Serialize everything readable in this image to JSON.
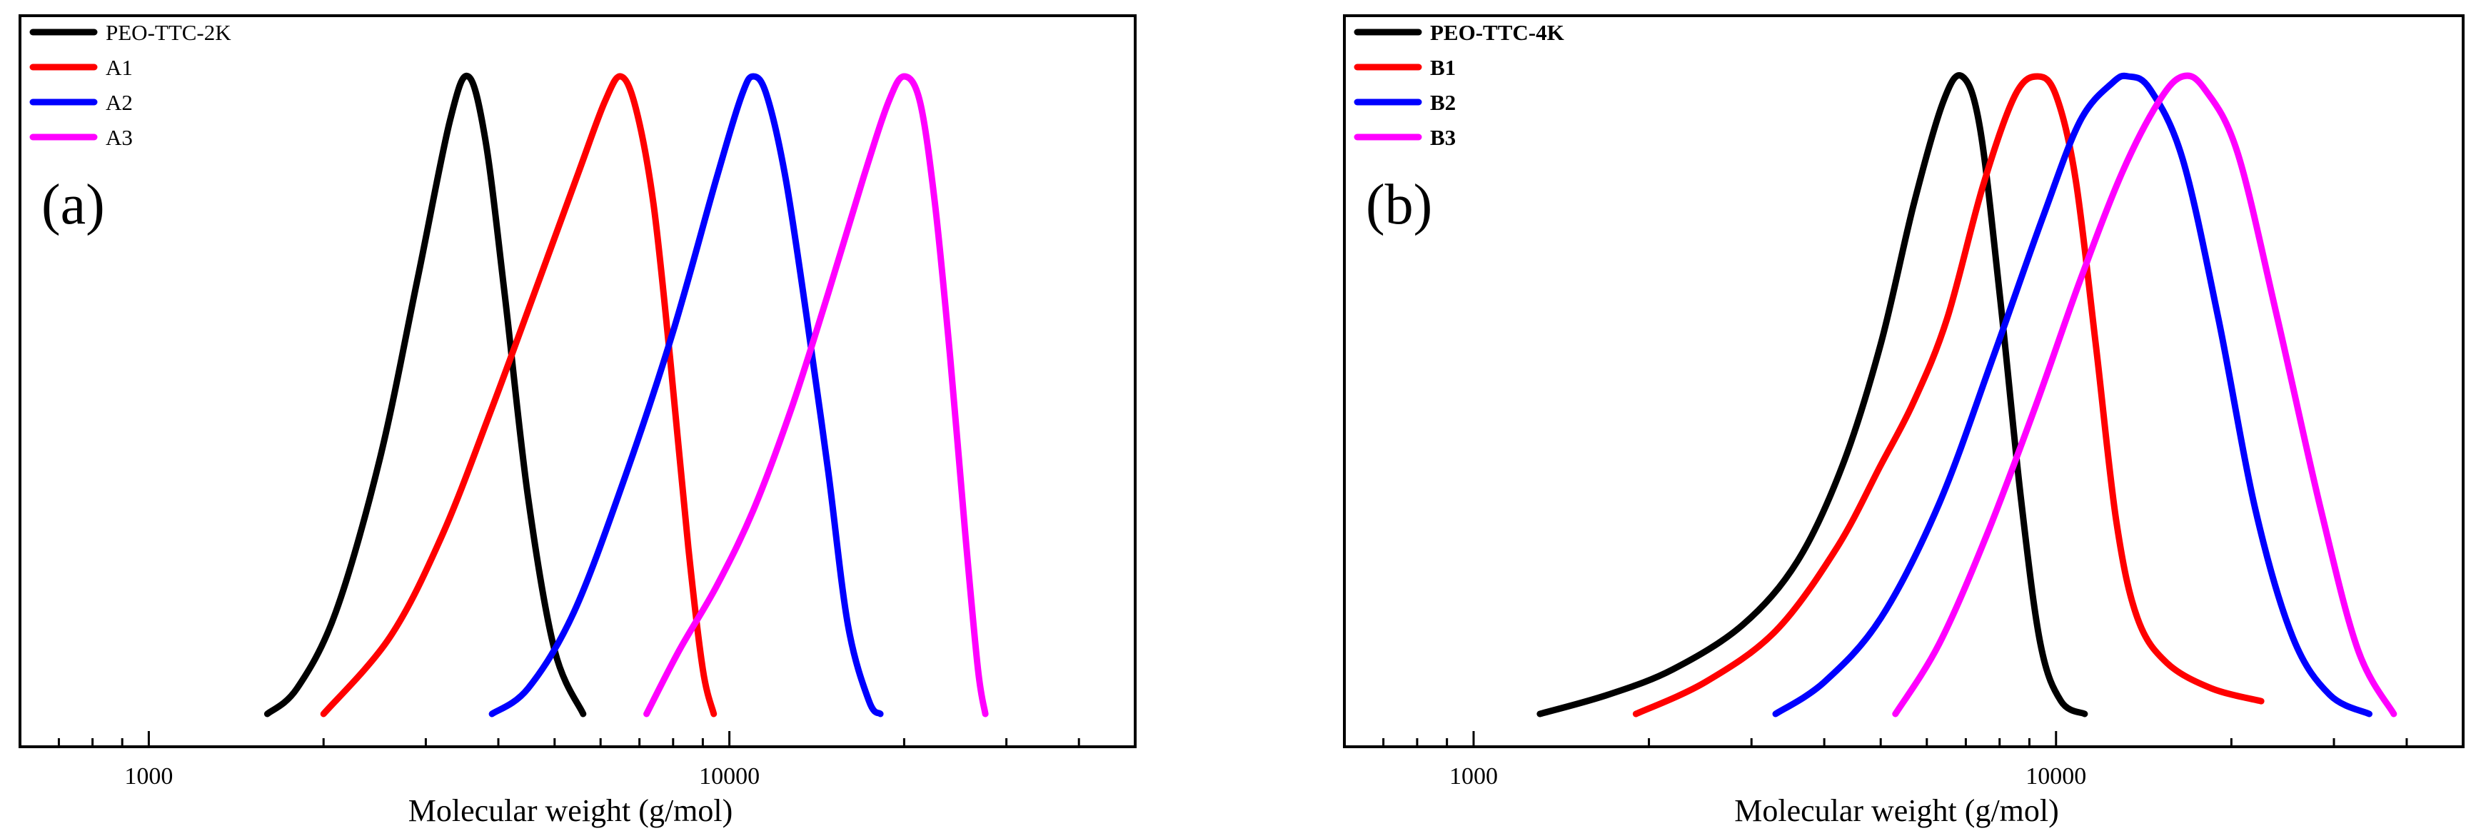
{
  "chart_data": [
    {
      "type": "line",
      "panel_label": "(a)",
      "xlabel": "Molecular weight (g/mol)",
      "ylabel": "",
      "xscale": "log",
      "xlim": [
        600,
        50000
      ],
      "ylim": [
        0,
        1.05
      ],
      "x_ticks": [
        1000,
        10000
      ],
      "x_tick_labels": [
        "1000",
        "10000"
      ],
      "legend": {
        "placement": "top-left",
        "bold": false
      },
      "series": [
        {
          "name": "PEO-TTC-2K",
          "color": "#000000",
          "x": [
            1600,
            1800,
            2100,
            2500,
            2900,
            3300,
            3550,
            3800,
            4100,
            4500,
            5000,
            5600
          ],
          "y": [
            0.0,
            0.04,
            0.16,
            0.4,
            0.68,
            0.93,
            1.0,
            0.9,
            0.66,
            0.34,
            0.1,
            0.0
          ]
        },
        {
          "name": "A1",
          "color": "#ff0000",
          "x": [
            2000,
            2600,
            3200,
            3900,
            4700,
            5500,
            6100,
            6500,
            6900,
            7400,
            7900,
            8500,
            9000,
            9400
          ],
          "y": [
            0.0,
            0.12,
            0.28,
            0.48,
            0.68,
            0.85,
            0.96,
            1.0,
            0.95,
            0.8,
            0.56,
            0.26,
            0.07,
            0.0
          ]
        },
        {
          "name": "A2",
          "color": "#0000ff",
          "x": [
            3900,
            4500,
            5400,
            6600,
            8000,
            9500,
            10500,
            11000,
            11600,
            12500,
            13600,
            14800,
            16000,
            17400,
            18200
          ],
          "y": [
            0.0,
            0.04,
            0.16,
            0.37,
            0.6,
            0.84,
            0.97,
            1.0,
            0.97,
            0.84,
            0.62,
            0.38,
            0.14,
            0.02,
            0.0
          ]
        },
        {
          "name": "A3",
          "color": "#ff00ff",
          "x": [
            7200,
            8200,
            9500,
            11000,
            12800,
            14800,
            17000,
            18800,
            20000,
            21300,
            22600,
            24000,
            25500,
            26800,
            27600
          ],
          "y": [
            0.0,
            0.1,
            0.2,
            0.32,
            0.48,
            0.66,
            0.84,
            0.96,
            1.0,
            0.96,
            0.8,
            0.56,
            0.28,
            0.07,
            0.0
          ]
        }
      ]
    },
    {
      "type": "line",
      "panel_label": "(b)",
      "xlabel": "Molecular weight (g/mol)",
      "ylabel": "",
      "xscale": "log",
      "xlim": [
        600,
        50000
      ],
      "ylim": [
        0,
        1.05
      ],
      "x_ticks": [
        1000,
        10000
      ],
      "x_tick_labels": [
        "1000",
        "10000"
      ],
      "legend": {
        "placement": "top-left",
        "bold": true
      },
      "series": [
        {
          "name": "PEO-TTC-4K",
          "color": "#000000",
          "x": [
            1300,
            1700,
            2200,
            2900,
            3600,
            4300,
            5000,
            5700,
            6400,
            6900,
            7400,
            8000,
            8700,
            9400,
            10200,
            11200
          ],
          "y": [
            0.0,
            0.03,
            0.07,
            0.14,
            0.24,
            0.39,
            0.58,
            0.8,
            0.96,
            1.0,
            0.92,
            0.66,
            0.34,
            0.11,
            0.02,
            0.0
          ]
        },
        {
          "name": "B1",
          "color": "#ff0000",
          "x": [
            1900,
            2500,
            3300,
            4200,
            5000,
            5700,
            6500,
            7500,
            8500,
            9300,
            10000,
            10800,
            11700,
            12700,
            13800,
            15500,
            18500,
            22500
          ],
          "y": [
            0.0,
            0.05,
            0.13,
            0.26,
            0.39,
            0.49,
            0.62,
            0.83,
            0.97,
            1.0,
            0.97,
            0.84,
            0.58,
            0.3,
            0.15,
            0.08,
            0.04,
            0.02
          ]
        },
        {
          "name": "B2",
          "color": "#0000ff",
          "x": [
            3300,
            4000,
            5000,
            6300,
            7800,
            9500,
            11000,
            12500,
            13300,
            14500,
            16500,
            19000,
            22000,
            25500,
            29500,
            34500
          ],
          "y": [
            0.0,
            0.05,
            0.15,
            0.33,
            0.56,
            0.78,
            0.93,
            0.99,
            1.0,
            0.98,
            0.87,
            0.62,
            0.32,
            0.12,
            0.03,
            0.0
          ]
        },
        {
          "name": "B3",
          "color": "#ff00ff",
          "x": [
            5300,
            6300,
            7600,
            9200,
            11000,
            13000,
            15000,
            16500,
            18000,
            20500,
            24000,
            28500,
            33000,
            38000
          ],
          "y": [
            0.0,
            0.11,
            0.28,
            0.48,
            0.68,
            0.85,
            0.96,
            1.0,
            0.98,
            0.88,
            0.62,
            0.32,
            0.1,
            0.0
          ]
        }
      ]
    }
  ]
}
